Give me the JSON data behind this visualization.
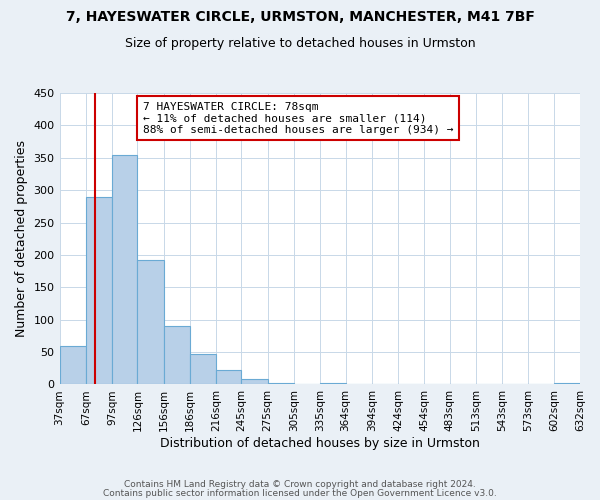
{
  "title": "7, HAYESWATER CIRCLE, URMSTON, MANCHESTER, M41 7BF",
  "subtitle": "Size of property relative to detached houses in Urmston",
  "xlabel": "Distribution of detached houses by size in Urmston",
  "ylabel": "Number of detached properties",
  "bin_edges": [
    37,
    67,
    97,
    126,
    156,
    186,
    216,
    245,
    275,
    305,
    335,
    364,
    394,
    424,
    454,
    483,
    513,
    543,
    573,
    602,
    632
  ],
  "bin_labels": [
    "37sqm",
    "67sqm",
    "97sqm",
    "126sqm",
    "156sqm",
    "186sqm",
    "216sqm",
    "245sqm",
    "275sqm",
    "305sqm",
    "335sqm",
    "364sqm",
    "394sqm",
    "424sqm",
    "454sqm",
    "483sqm",
    "513sqm",
    "543sqm",
    "573sqm",
    "602sqm",
    "632sqm"
  ],
  "counts": [
    60,
    290,
    355,
    192,
    91,
    47,
    22,
    8,
    2,
    0,
    3,
    0,
    0,
    0,
    0,
    0,
    0,
    0,
    0,
    2
  ],
  "bar_color": "#b8d0e8",
  "bar_edge_color": "#6aaad4",
  "property_label": "7 HAYESWATER CIRCLE: 78sqm",
  "annotation_line1": "← 11% of detached houses are smaller (114)",
  "annotation_line2": "88% of semi-detached houses are larger (934) →",
  "vline_color": "#cc0000",
  "vline_x": 78,
  "ylim": [
    0,
    450
  ],
  "yticks": [
    0,
    50,
    100,
    150,
    200,
    250,
    300,
    350,
    400,
    450
  ],
  "footer_line1": "Contains HM Land Registry data © Crown copyright and database right 2024.",
  "footer_line2": "Contains public sector information licensed under the Open Government Licence v3.0.",
  "background_color": "#eaf0f6",
  "plot_background_color": "#ffffff",
  "grid_color": "#c8d8e8"
}
